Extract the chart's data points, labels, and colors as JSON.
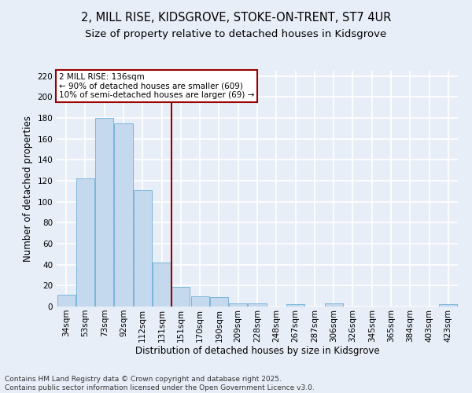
{
  "title_line1": "2, MILL RISE, KIDSGROVE, STOKE-ON-TRENT, ST7 4UR",
  "title_line2": "Size of property relative to detached houses in Kidsgrove",
  "xlabel": "Distribution of detached houses by size in Kidsgrove",
  "ylabel": "Number of detached properties",
  "categories": [
    "34sqm",
    "53sqm",
    "73sqm",
    "92sqm",
    "112sqm",
    "131sqm",
    "151sqm",
    "170sqm",
    "190sqm",
    "209sqm",
    "228sqm",
    "248sqm",
    "267sqm",
    "287sqm",
    "306sqm",
    "326sqm",
    "345sqm",
    "365sqm",
    "384sqm",
    "403sqm",
    "423sqm"
  ],
  "values": [
    11,
    122,
    180,
    175,
    111,
    42,
    19,
    10,
    9,
    3,
    3,
    0,
    2,
    0,
    3,
    0,
    0,
    0,
    0,
    0,
    2
  ],
  "bar_color": "#c5d9ee",
  "bar_edge_color": "#6aaed6",
  "vline_x_index": 5,
  "vline_color": "#990000",
  "annotation_text": "2 MILL RISE: 136sqm\n← 90% of detached houses are smaller (609)\n10% of semi-detached houses are larger (69) →",
  "annotation_box_color": "white",
  "annotation_box_edge_color": "#990000",
  "ylim_max": 225,
  "yticks": [
    0,
    20,
    40,
    60,
    80,
    100,
    120,
    140,
    160,
    180,
    200,
    220
  ],
  "bg_color": "#e8eef8",
  "grid_color": "white",
  "footer_text": "Contains HM Land Registry data © Crown copyright and database right 2025.\nContains public sector information licensed under the Open Government Licence v3.0.",
  "title_fontsize": 10.5,
  "subtitle_fontsize": 9.5,
  "axis_label_fontsize": 8.5,
  "tick_fontsize": 7.5,
  "annotation_fontsize": 7.5,
  "footer_fontsize": 6.5
}
